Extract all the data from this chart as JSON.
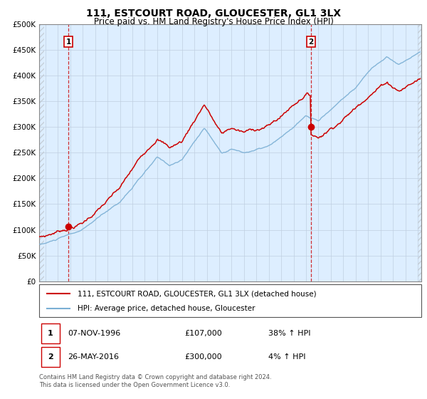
{
  "title": "111, ESTCOURT ROAD, GLOUCESTER, GL1 3LX",
  "subtitle": "Price paid vs. HM Land Registry's House Price Index (HPI)",
  "ylabel_ticks": [
    "£0",
    "£50K",
    "£100K",
    "£150K",
    "£200K",
    "£250K",
    "£300K",
    "£350K",
    "£400K",
    "£450K",
    "£500K"
  ],
  "ytick_values": [
    0,
    50000,
    100000,
    150000,
    200000,
    250000,
    300000,
    350000,
    400000,
    450000,
    500000
  ],
  "ylim": [
    0,
    500000
  ],
  "xlim_start": 1994.5,
  "xlim_end": 2025.3,
  "sale1_x": 1996.85,
  "sale1_y": 107000,
  "sale2_x": 2016.4,
  "sale2_y": 300000,
  "legend_line1": "111, ESTCOURT ROAD, GLOUCESTER, GL1 3LX (detached house)",
  "legend_line2": "HPI: Average price, detached house, Gloucester",
  "footer": "Contains HM Land Registry data © Crown copyright and database right 2024.\nThis data is licensed under the Open Government Licence v3.0.",
  "hpi_color": "#7bafd4",
  "price_color": "#cc0000",
  "bg_color": "#ddeeff",
  "hatch_color": "#c0c8d0",
  "grid_color": "#c0cfe0"
}
